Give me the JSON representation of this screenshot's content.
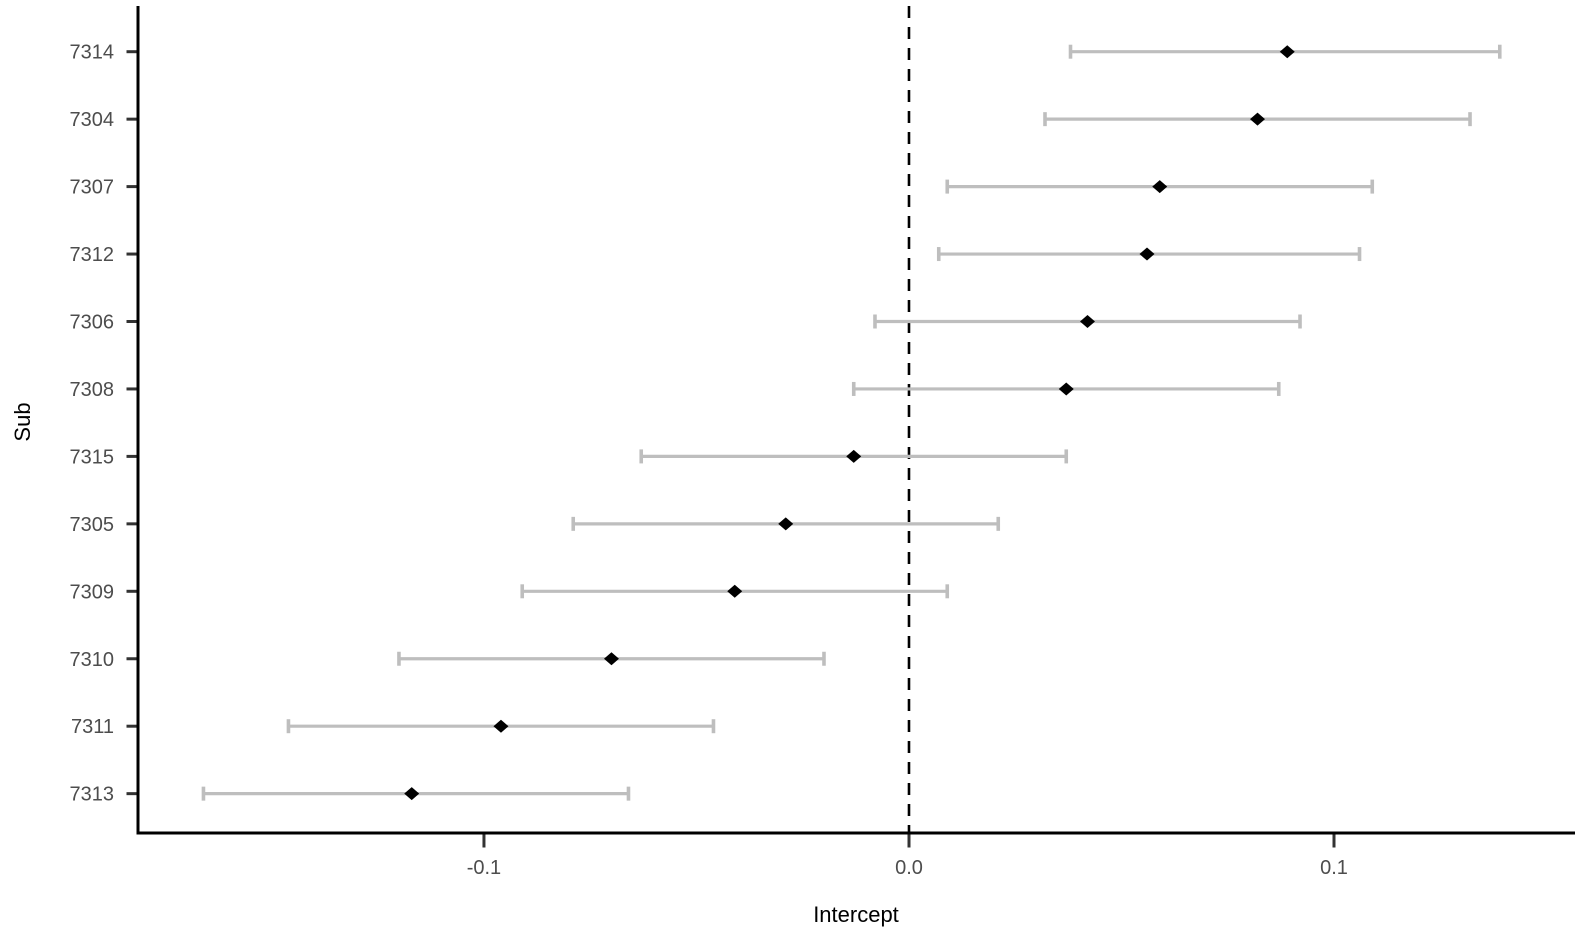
{
  "chart_data": {
    "type": "scatter",
    "subtype": "forest-plot",
    "orientation": "horizontal",
    "title": "",
    "xlabel": "Intercept",
    "ylabel": "Sub",
    "categories": [
      "7314",
      "7304",
      "7307",
      "7312",
      "7306",
      "7308",
      "7315",
      "7305",
      "7309",
      "7310",
      "7311",
      "7313"
    ],
    "series": [
      {
        "name": "estimate",
        "values": [
          0.089,
          0.082,
          0.059,
          0.056,
          0.042,
          0.037,
          -0.013,
          -0.029,
          -0.041,
          -0.07,
          -0.096,
          -0.117
        ]
      },
      {
        "name": "ci_lower",
        "values": [
          0.038,
          0.032,
          0.009,
          0.007,
          -0.008,
          -0.013,
          -0.063,
          -0.079,
          -0.091,
          -0.12,
          -0.146,
          -0.166
        ]
      },
      {
        "name": "ci_upper",
        "values": [
          0.139,
          0.132,
          0.109,
          0.106,
          0.092,
          0.087,
          0.037,
          0.021,
          0.009,
          -0.02,
          -0.046,
          -0.066
        ]
      }
    ],
    "x_ticks": [
      -0.1,
      0.0,
      0.1
    ],
    "x_tick_labels": [
      "-0.1",
      "0.0",
      "0.1"
    ],
    "xlim": [
      -0.1814,
      0.1567
    ],
    "reference_line_x": 0,
    "reference_line_style": "dashed",
    "grid": false,
    "legend": "none",
    "colors": {
      "point": "#000000",
      "errorbar": "#bebebe",
      "axis_text": "#4d4d4d",
      "axis_line": "#000000",
      "reference_line": "#000000",
      "background": "#ffffff"
    }
  }
}
